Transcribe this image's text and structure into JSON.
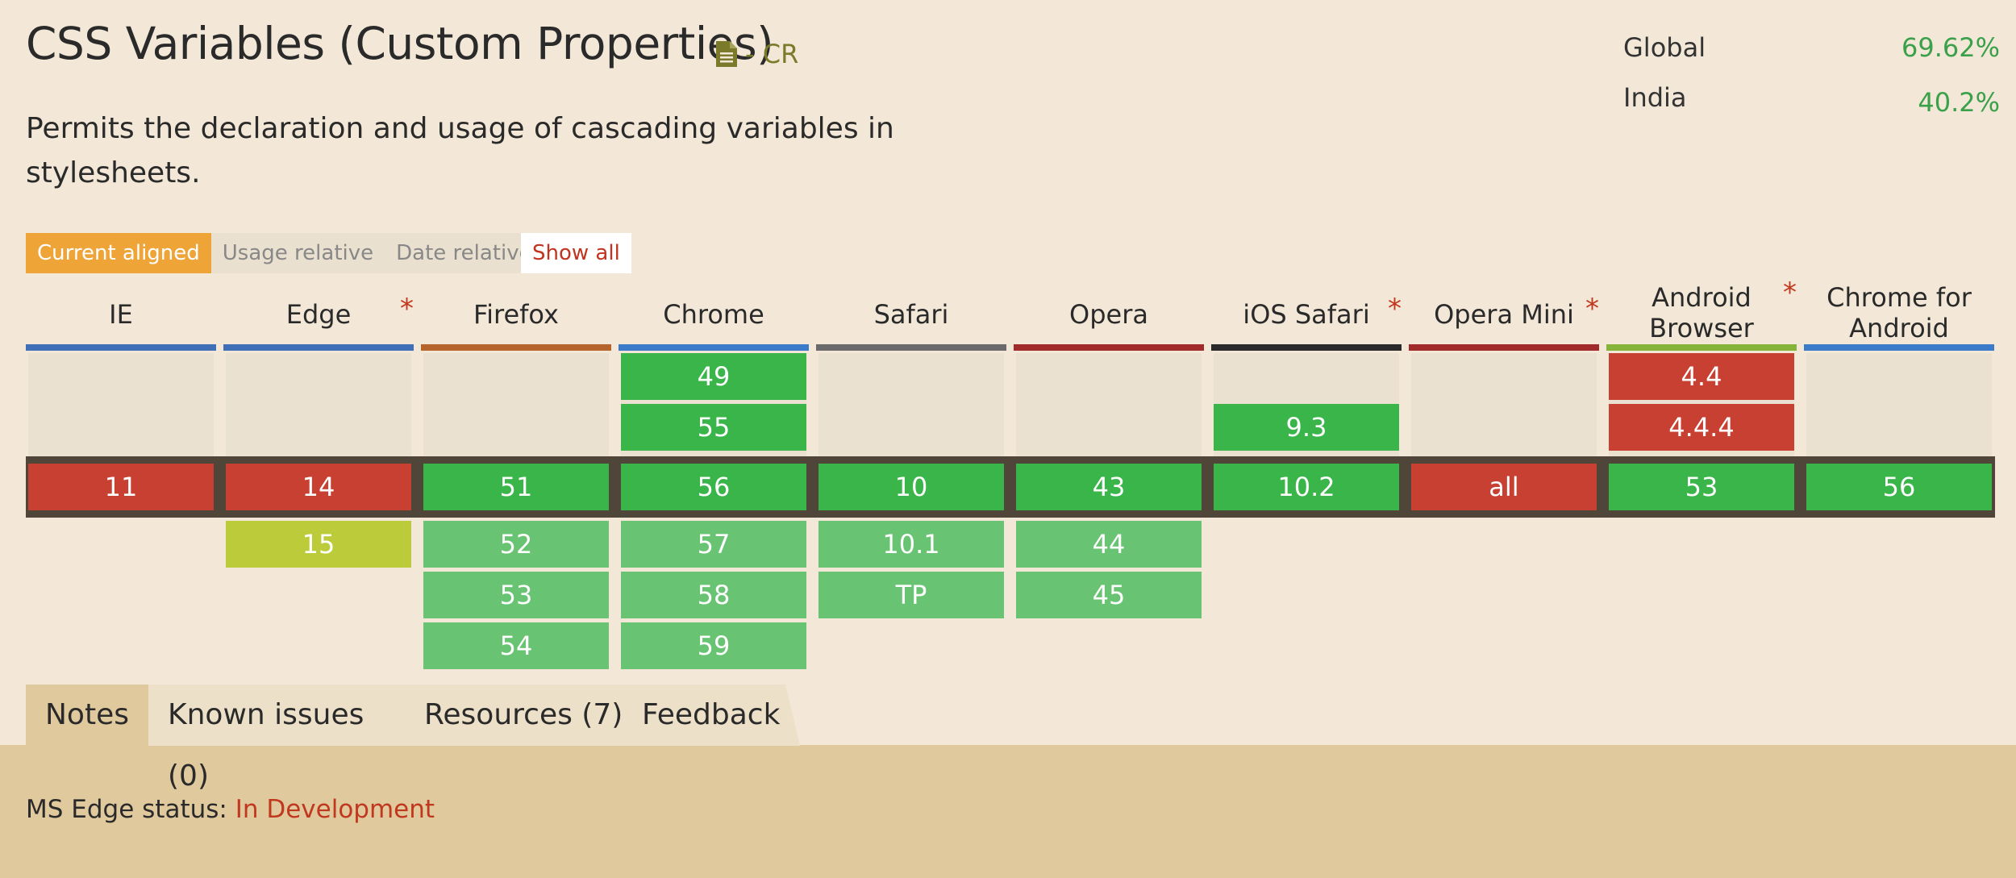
{
  "title": "CSS Variables (Custom Properties)",
  "spec_status": "- CR",
  "description": "Permits the declaration and usage of cascading variables in stylesheets.",
  "usage": [
    {
      "label": "Global",
      "value": "69.62%"
    },
    {
      "label": "India",
      "value": "40.2%"
    }
  ],
  "views": [
    "Current aligned",
    "Usage relative",
    "Date relative"
  ],
  "show_all": "Show all",
  "colors": {
    "supported": "#39b54a",
    "unsupported": "#c84031",
    "partial": "#bccb3a",
    "future": "#68c372",
    "accent": "#eea436"
  },
  "browsers": [
    {
      "name": "IE",
      "note": false,
      "bar_color": "#3f6fb6",
      "past": [],
      "current": {
        "v": "11",
        "s": "n"
      },
      "future": []
    },
    {
      "name": "Edge",
      "note": true,
      "bar_color": "#3f6fb6",
      "past": [],
      "current": {
        "v": "14",
        "s": "n"
      },
      "future": [
        {
          "v": "15",
          "s": "p"
        }
      ]
    },
    {
      "name": "Firefox",
      "note": false,
      "bar_color": "#b5652b",
      "past": [],
      "current": {
        "v": "51",
        "s": "y"
      },
      "future": [
        {
          "v": "52",
          "s": "f"
        },
        {
          "v": "53",
          "s": "f"
        },
        {
          "v": "54",
          "s": "f"
        }
      ]
    },
    {
      "name": "Chrome",
      "note": false,
      "bar_color": "#3b7bc9",
      "past": [
        {
          "v": "49",
          "s": "y"
        },
        {
          "v": "55",
          "s": "y"
        }
      ],
      "current": {
        "v": "56",
        "s": "y"
      },
      "future": [
        {
          "v": "57",
          "s": "f"
        },
        {
          "v": "58",
          "s": "f"
        },
        {
          "v": "59",
          "s": "f"
        }
      ]
    },
    {
      "name": "Safari",
      "note": false,
      "bar_color": "#6a6a6a",
      "past": [],
      "current": {
        "v": "10",
        "s": "y"
      },
      "future": [
        {
          "v": "10.1",
          "s": "f"
        },
        {
          "v": "TP",
          "s": "f"
        }
      ]
    },
    {
      "name": "Opera",
      "note": false,
      "bar_color": "#a12b2b",
      "past": [],
      "current": {
        "v": "43",
        "s": "y"
      },
      "future": [
        {
          "v": "44",
          "s": "f"
        },
        {
          "v": "45",
          "s": "f"
        }
      ]
    },
    {
      "name": "iOS Safari",
      "note": true,
      "bar_color": "#2a2a2a",
      "past": [
        {
          "v": "",
          "s": ""
        },
        {
          "v": "9.3",
          "s": "y"
        }
      ],
      "current": {
        "v": "10.2",
        "s": "y"
      },
      "future": []
    },
    {
      "name": "Opera Mini",
      "note": true,
      "bar_color": "#a12b2b",
      "past": [],
      "current": {
        "v": "all",
        "s": "n"
      },
      "future": []
    },
    {
      "name": "Android Browser",
      "note": true,
      "bar_color": "#86b43a",
      "past": [
        {
          "v": "4.4",
          "s": "n"
        },
        {
          "v": "4.4.4",
          "s": "n"
        }
      ],
      "current": {
        "v": "53",
        "s": "y"
      },
      "future": []
    },
    {
      "name": "Chrome for Android",
      "note": false,
      "bar_color": "#3b7bc9",
      "past": [],
      "current": {
        "v": "56",
        "s": "y"
      },
      "future": []
    }
  ],
  "tabs": [
    "Notes",
    "Known issues (0)",
    "Resources (7)",
    "Feedback"
  ],
  "notes": {
    "label": "MS Edge status:",
    "link": "In Development"
  }
}
